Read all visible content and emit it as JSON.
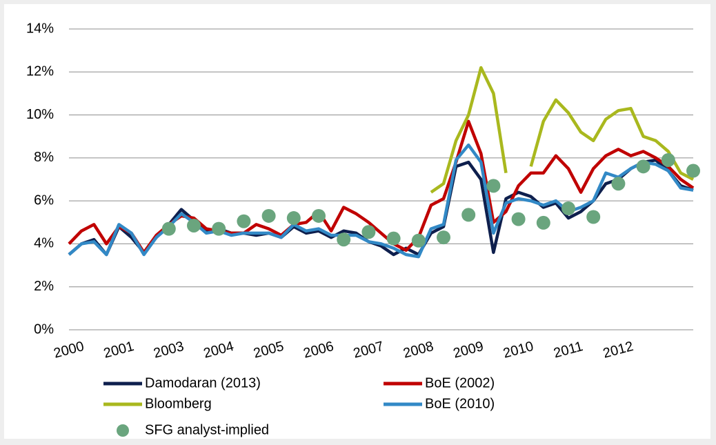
{
  "chart_data": {
    "type": "line",
    "categories": [
      "2000",
      null,
      null,
      null,
      "2001",
      null,
      null,
      null,
      "2003",
      null,
      null,
      null,
      "2004",
      null,
      null,
      null,
      "2005",
      null,
      null,
      null,
      "2006",
      null,
      null,
      null,
      "2007",
      null,
      null,
      null,
      "2008",
      null,
      null,
      null,
      "2009",
      null,
      null,
      null,
      "2010",
      null,
      null,
      null,
      "2011",
      null,
      null,
      null,
      "2012",
      null,
      null,
      null,
      null,
      null,
      null
    ],
    "ylim": [
      0,
      14
    ],
    "yticks": [
      {
        "value": 0,
        "label": "0%"
      },
      {
        "value": 2,
        "label": "2%"
      },
      {
        "value": 4,
        "label": "4%"
      },
      {
        "value": 6,
        "label": "6%"
      },
      {
        "value": 8,
        "label": "8%"
      },
      {
        "value": 10,
        "label": "10%"
      },
      {
        "value": 12,
        "label": "12%"
      },
      {
        "value": 14,
        "label": "14%"
      }
    ],
    "grid": true,
    "series": [
      {
        "name": "Damodaran (2013)",
        "color": "#0e1f4d",
        "style": "line",
        "values": [
          3.5,
          4.0,
          4.2,
          3.5,
          4.8,
          4.3,
          3.6,
          4.3,
          4.9,
          5.6,
          5.1,
          4.6,
          4.7,
          4.5,
          4.5,
          4.4,
          4.5,
          4.3,
          4.8,
          4.5,
          4.6,
          4.3,
          4.6,
          4.5,
          4.1,
          3.9,
          3.5,
          3.8,
          3.5,
          4.5,
          4.8,
          7.6,
          7.8,
          7.0,
          3.6,
          6.1,
          6.4,
          6.2,
          5.7,
          5.9,
          5.2,
          5.5,
          6.0,
          6.8,
          7.0,
          7.5,
          7.8,
          7.9,
          7.4,
          6.7,
          6.5
        ]
      },
      {
        "name": "BoE (2002)",
        "color": "#c00000",
        "style": "line",
        "values": [
          4.0,
          4.6,
          4.9,
          4.0,
          4.8,
          4.5,
          3.6,
          4.4,
          4.9,
          5.3,
          5.2,
          4.7,
          4.6,
          4.5,
          4.5,
          4.9,
          4.7,
          4.4,
          4.9,
          5.0,
          5.5,
          4.6,
          5.7,
          5.4,
          5.0,
          4.5,
          4.0,
          3.7,
          4.3,
          5.8,
          6.1,
          7.8,
          9.7,
          8.2,
          5.0,
          5.5,
          6.7,
          7.3,
          7.3,
          8.1,
          7.5,
          6.4,
          7.5,
          8.1,
          8.4,
          8.1,
          8.3,
          8.0,
          7.6,
          7.0,
          6.6
        ]
      },
      {
        "name": "Bloomberg",
        "color": "#a9b81e",
        "style": "line",
        "values": [
          null,
          null,
          null,
          null,
          null,
          null,
          null,
          null,
          null,
          null,
          null,
          null,
          null,
          null,
          null,
          null,
          null,
          null,
          null,
          null,
          null,
          null,
          null,
          null,
          null,
          null,
          null,
          null,
          null,
          6.4,
          6.8,
          8.8,
          10.0,
          12.2,
          11.0,
          7.3,
          null,
          7.6,
          9.7,
          10.7,
          10.1,
          9.2,
          8.8,
          9.8,
          10.2,
          10.3,
          9.0,
          8.8,
          8.3,
          7.3,
          7.0
        ]
      },
      {
        "name": "BoE (2010)",
        "color": "#3289c6",
        "style": "line",
        "values": [
          3.5,
          4.0,
          4.1,
          3.5,
          4.9,
          4.5,
          3.5,
          4.3,
          4.8,
          5.4,
          5.0,
          4.5,
          4.6,
          4.4,
          4.5,
          4.5,
          4.5,
          4.3,
          4.9,
          4.6,
          4.7,
          4.4,
          4.4,
          4.4,
          4.1,
          4.0,
          3.8,
          3.5,
          3.4,
          4.7,
          4.9,
          7.9,
          8.6,
          7.8,
          4.5,
          5.9,
          6.1,
          6.0,
          5.8,
          6.0,
          5.5,
          5.7,
          6.0,
          7.3,
          7.1,
          7.5,
          7.8,
          7.7,
          7.4,
          6.6,
          6.5
        ]
      },
      {
        "name": "SFG analyst-implied",
        "color": "#6aa57e",
        "style": "dots",
        "values": [
          null,
          null,
          null,
          null,
          null,
          null,
          null,
          null,
          4.7,
          null,
          4.85,
          null,
          4.7,
          null,
          5.05,
          null,
          5.3,
          null,
          5.2,
          null,
          5.3,
          null,
          4.2,
          null,
          4.55,
          null,
          4.25,
          null,
          4.15,
          null,
          4.3,
          null,
          5.35,
          null,
          6.7,
          null,
          5.15,
          null,
          4.98,
          null,
          5.65,
          null,
          5.25,
          null,
          6.8,
          null,
          7.6,
          null,
          7.9,
          null,
          7.4
        ]
      }
    ]
  }
}
